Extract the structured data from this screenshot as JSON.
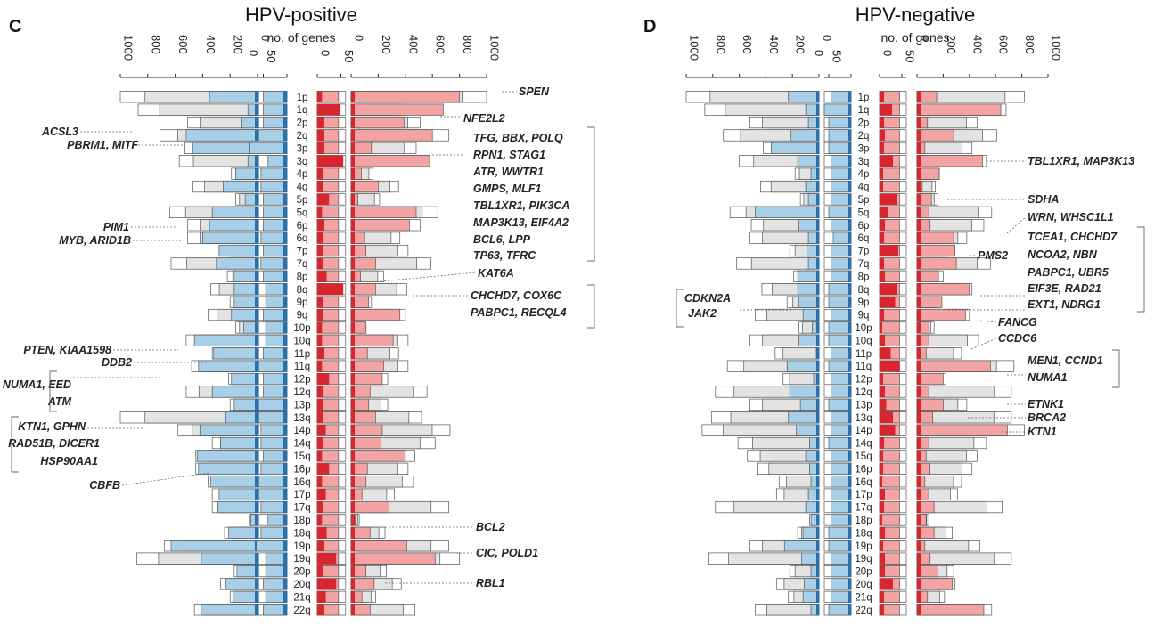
{
  "chart_data": [
    {
      "type": "bar",
      "panel_letter": "C",
      "title": "HPV-positive",
      "axis_label": "no. of genes",
      "large_axis_ticks": [
        "1000",
        "800",
        "600",
        "400",
        "200",
        "0"
      ],
      "large_axis_ticks_right": [
        "0",
        "200",
        "400",
        "600",
        "800",
        "1000"
      ],
      "small_axis_ticks": [
        "0",
        "50",
        "50",
        "0"
      ],
      "categories": [
        "1p",
        "1q",
        "2p",
        "2q",
        "3p",
        "3q",
        "4p",
        "4q",
        "5p",
        "5q",
        "6p",
        "6q",
        "7p",
        "7q",
        "8p",
        "8q",
        "9p",
        "9q",
        "10p",
        "10q",
        "11p",
        "11q",
        "12p",
        "12q",
        "13p",
        "13q",
        "14p",
        "14q",
        "15q",
        "16p",
        "16q",
        "17p",
        "17q",
        "18p",
        "18q",
        "19p",
        "19q",
        "20p",
        "20q",
        "21q",
        "22q"
      ],
      "series": [
        {
          "values": [
            1000,
            870,
            510,
            710,
            530,
            570,
            190,
            470,
            160,
            640,
            510,
            510,
            210,
            630,
            220,
            340,
            200,
            360,
            160,
            520,
            330,
            480,
            210,
            520,
            200,
            1000,
            580,
            330,
            450,
            450,
            360,
            330,
            330,
            60,
            240,
            680,
            880,
            170,
            270,
            200,
            460
          ]
        },
        {
          "values": [
            350,
            70,
            120,
            520,
            470,
            70,
            160,
            250,
            90,
            330,
            350,
            400,
            280,
            300,
            170,
            170,
            170,
            190,
            100,
            460,
            320,
            430,
            190,
            330,
            170,
            230,
            420,
            270,
            440,
            430,
            340,
            280,
            290,
            50,
            210,
            630,
            410,
            150,
            230,
            180,
            410
          ]
        },
        {
          "values": [
            50,
            50,
            50,
            60,
            80,
            40,
            55,
            55,
            50,
            50,
            50,
            55,
            50,
            55,
            50,
            45,
            45,
            50,
            45,
            45,
            50,
            60,
            50,
            50,
            60,
            60,
            55,
            55,
            50,
            55,
            60,
            60,
            55,
            40,
            55,
            65,
            45,
            45,
            50,
            45,
            50
          ]
        },
        {
          "values": [
            10,
            48,
            15,
            15,
            15,
            55,
            12,
            12,
            25,
            10,
            15,
            12,
            12,
            12,
            20,
            55,
            12,
            12,
            10,
            10,
            15,
            10,
            25,
            12,
            12,
            12,
            18,
            12,
            10,
            25,
            10,
            18,
            12,
            10,
            20,
            15,
            40,
            12,
            40,
            18,
            15
          ]
        },
        {
          "values": [
            1000,
            400,
            510,
            720,
            480,
            580,
            160,
            350,
            210,
            640,
            510,
            360,
            420,
            590,
            240,
            410,
            150,
            400,
            110,
            420,
            350,
            420,
            270,
            560,
            270,
            520,
            730,
            620,
            470,
            420,
            460,
            320,
            720,
            60,
            250,
            720,
            800,
            260,
            370,
            180,
            470
          ]
        },
        {
          "values": [
            800,
            680,
            390,
            600,
            150,
            580,
            75,
            200,
            50,
            480,
            430,
            100,
            110,
            180,
            70,
            180,
            130,
            360,
            110,
            310,
            120,
            240,
            230,
            140,
            130,
            180,
            230,
            220,
            400,
            120,
            110,
            80,
            280,
            30,
            140,
            410,
            620,
            110,
            170,
            80,
            140
          ]
        }
      ],
      "left_annotations": [
        "ACSL3",
        "PBRM1, MITF",
        "PIM1",
        "MYB, ARID1B",
        "PTEN, KIAA1598",
        "DDB2",
        "NUMA1, EED",
        "ATM",
        "KTN1, GPHN",
        "RAD51B, DICER1",
        "HSP90AA1",
        "CBFB"
      ],
      "right_annotations": [
        "SPEN",
        "NFE2L2",
        "TFG, BBX, POLQ",
        "RPN1, STAG1",
        "ATR, WWTR1",
        "GMPS, MLF1",
        "TBL1XR1, PIK3CA",
        "MAP3K13, EIF4A2",
        "BCL6, LPP",
        "TP63, TFRC",
        "KAT6A",
        "CHCHD7, COX6C",
        "PABPC1, RECQL4",
        "BCL2",
        "CIC, POLD1",
        "RBL1"
      ]
    },
    {
      "type": "bar",
      "panel_letter": "D",
      "title": "HPV-negative",
      "axis_label": "no. of genes",
      "large_axis_ticks": [
        "1000",
        "800",
        "600",
        "400",
        "200",
        "0"
      ],
      "large_axis_ticks_right": [
        "0",
        "200",
        "400",
        "600",
        "800",
        "1000"
      ],
      "small_axis_ticks": [
        "0",
        "50",
        "50",
        "0"
      ],
      "categories": [
        "1p",
        "1q",
        "2p",
        "2q",
        "3p",
        "3q",
        "4p",
        "4q",
        "5p",
        "5q",
        "6p",
        "6q",
        "7p",
        "7q",
        "8p",
        "8q",
        "9p",
        "9q",
        "10p",
        "10q",
        "11p",
        "11q",
        "12p",
        "12q",
        "13p",
        "13q",
        "14p",
        "14q",
        "15q",
        "16p",
        "16q",
        "17p",
        "17q",
        "18p",
        "18q",
        "19p",
        "19q",
        "20p",
        "20q",
        "21q",
        "22q"
      ],
      "series": [
        {
          "values": [
            1000,
            860,
            520,
            720,
            420,
            600,
            180,
            440,
            140,
            670,
            510,
            520,
            220,
            620,
            190,
            430,
            240,
            480,
            150,
            520,
            330,
            690,
            270,
            780,
            520,
            810,
            880,
            610,
            540,
            460,
            300,
            320,
            780,
            70,
            160,
            520,
            830,
            220,
            320,
            230,
            480
          ]
        },
        {
          "values": [
            230,
            100,
            80,
            210,
            360,
            160,
            60,
            100,
            80,
            480,
            150,
            80,
            90,
            80,
            160,
            160,
            150,
            120,
            50,
            150,
            20,
            240,
            40,
            220,
            140,
            230,
            170,
            70,
            100,
            70,
            60,
            80,
            100,
            60,
            120,
            260,
            130,
            60,
            110,
            120,
            60
          ]
        },
        {
          "values": [
            45,
            60,
            50,
            50,
            50,
            45,
            45,
            45,
            45,
            50,
            45,
            40,
            45,
            45,
            45,
            50,
            50,
            45,
            50,
            50,
            45,
            50,
            45,
            45,
            50,
            45,
            45,
            50,
            45,
            45,
            45,
            45,
            45,
            45,
            50,
            50,
            45,
            45,
            45,
            45,
            50
          ]
        },
        {
          "values": [
            10,
            28,
            10,
            12,
            10,
            30,
            8,
            8,
            38,
            18,
            12,
            10,
            42,
            10,
            12,
            40,
            35,
            10,
            6,
            12,
            25,
            45,
            8,
            12,
            15,
            30,
            35,
            10,
            8,
            8,
            6,
            12,
            10,
            6,
            12,
            8,
            12,
            12,
            30,
            10,
            10
          ]
        },
        {
          "values": [
            820,
            680,
            460,
            610,
            420,
            530,
            170,
            140,
            160,
            570,
            510,
            380,
            230,
            560,
            200,
            420,
            170,
            400,
            130,
            470,
            340,
            740,
            220,
            720,
            380,
            720,
            820,
            530,
            460,
            420,
            340,
            310,
            650,
            90,
            270,
            480,
            720,
            280,
            290,
            210,
            570
          ]
        },
        {
          "values": [
            150,
            640,
            80,
            280,
            60,
            500,
            170,
            40,
            110,
            90,
            100,
            280,
            290,
            300,
            160,
            400,
            190,
            370,
            90,
            90,
            70,
            560,
            200,
            90,
            200,
            120,
            690,
            90,
            70,
            100,
            60,
            90,
            130,
            70,
            130,
            60,
            100,
            160,
            270,
            80,
            510
          ]
        }
      ],
      "left_annotations": [
        "CDKN2A",
        "JAK2"
      ],
      "right_annotations": [
        "TBL1XR1, MAP3K13",
        "SDHA",
        "WRN, WHSC1L1",
        "TCEA1, CHCHD7",
        "NCOA2, NBN",
        "PMS2",
        "PABPC1, UBR5",
        "EIF3E, RAD21",
        "EXT1, NDRG1",
        "FANCG",
        "CCDC6",
        "MEN1, CCND1",
        "NUMA1",
        "ETNK1",
        "BRCA2",
        "KTN1"
      ]
    }
  ],
  "colors": {
    "loss_light": "#a8cfe8",
    "loss_dark": "#2472b1",
    "gain_light": "#f4a3a3",
    "gain_dark": "#d9262e",
    "total_bar": "#e3e3e3"
  }
}
